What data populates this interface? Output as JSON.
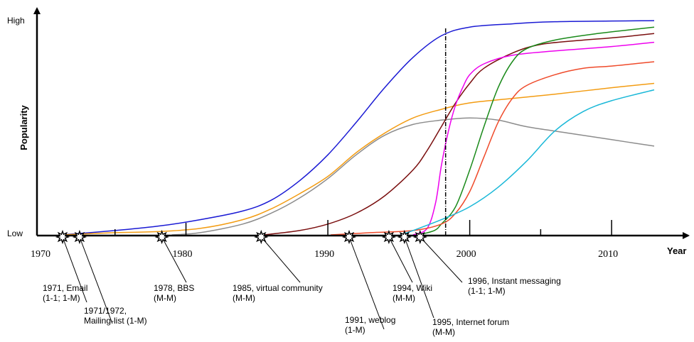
{
  "chart_data": {
    "type": "line",
    "xlabel": "Year",
    "ylabel": "Popularity",
    "y_ticks": [
      "Low",
      "High"
    ],
    "x_ticks": [
      "1970",
      "1980",
      "1990",
      "2000",
      "2010"
    ],
    "xlim": [
      1970,
      2013
    ],
    "ylim": [
      0,
      1
    ],
    "grid": false,
    "legend": "none",
    "series": [
      {
        "color": "#1a1ad4",
        "points": [
          [
            1971.2,
            0.0
          ],
          [
            1975,
            0.02
          ],
          [
            1978,
            0.04
          ],
          [
            1981,
            0.07
          ],
          [
            1984,
            0.11
          ],
          [
            1986,
            0.16
          ],
          [
            1988,
            0.25
          ],
          [
            1990,
            0.37
          ],
          [
            1992,
            0.52
          ],
          [
            1994,
            0.68
          ],
          [
            1996,
            0.82
          ],
          [
            1998,
            0.92
          ],
          [
            2000,
            0.96
          ],
          [
            2003,
            0.975
          ],
          [
            2006,
            0.985
          ],
          [
            2013,
            0.99
          ]
        ]
      },
      {
        "color": "#f39c12",
        "points": [
          [
            1971.2,
            0.0
          ],
          [
            1975,
            0.01
          ],
          [
            1978,
            0.015
          ],
          [
            1981,
            0.03
          ],
          [
            1984,
            0.07
          ],
          [
            1986,
            0.12
          ],
          [
            1988,
            0.19
          ],
          [
            1990,
            0.27
          ],
          [
            1992,
            0.38
          ],
          [
            1994,
            0.47
          ],
          [
            1996,
            0.54
          ],
          [
            1998,
            0.58
          ],
          [
            2000,
            0.61
          ],
          [
            2003,
            0.63
          ],
          [
            2006,
            0.65
          ],
          [
            2010,
            0.68
          ],
          [
            2013,
            0.7
          ]
        ]
      },
      {
        "color": "#8c8c8c",
        "points": [
          [
            1979,
            0.0
          ],
          [
            1981,
            0.01
          ],
          [
            1984,
            0.05
          ],
          [
            1986,
            0.1
          ],
          [
            1988,
            0.17
          ],
          [
            1990,
            0.26
          ],
          [
            1992,
            0.37
          ],
          [
            1994,
            0.46
          ],
          [
            1996,
            0.51
          ],
          [
            1998,
            0.53
          ],
          [
            2000,
            0.54
          ],
          [
            2002,
            0.53
          ],
          [
            2004,
            0.5
          ],
          [
            2007,
            0.47
          ],
          [
            2010,
            0.44
          ],
          [
            2013,
            0.41
          ]
        ]
      },
      {
        "color": "#7a0e0e",
        "points": [
          [
            1985.5,
            0.0
          ],
          [
            1988,
            0.02
          ],
          [
            1990,
            0.05
          ],
          [
            1992,
            0.1
          ],
          [
            1994,
            0.18
          ],
          [
            1996,
            0.3
          ],
          [
            1997,
            0.39
          ],
          [
            1998,
            0.5
          ],
          [
            1999,
            0.61
          ],
          [
            2000,
            0.7
          ],
          [
            2001,
            0.77
          ],
          [
            2003,
            0.84
          ],
          [
            2005,
            0.88
          ],
          [
            2008,
            0.9
          ],
          [
            2010,
            0.91
          ],
          [
            2013,
            0.93
          ]
        ]
      },
      {
        "color": "#ee00ee",
        "points": [
          [
            1996,
            0.0
          ],
          [
            1997,
            0.03
          ],
          [
            1997.6,
            0.15
          ],
          [
            1998,
            0.32
          ],
          [
            1998.5,
            0.48
          ],
          [
            1999,
            0.6
          ],
          [
            1999.5,
            0.68
          ],
          [
            2000,
            0.74
          ],
          [
            2001,
            0.79
          ],
          [
            2003,
            0.83
          ],
          [
            2006,
            0.85
          ],
          [
            2010,
            0.87
          ],
          [
            2013,
            0.89
          ]
        ]
      },
      {
        "color": "#1a8a1a",
        "points": [
          [
            1996.4,
            0.0
          ],
          [
            1997.5,
            0.02
          ],
          [
            1998,
            0.05
          ],
          [
            1999,
            0.13
          ],
          [
            2000,
            0.3
          ],
          [
            2001,
            0.5
          ],
          [
            2002,
            0.68
          ],
          [
            2003,
            0.8
          ],
          [
            2004,
            0.86
          ],
          [
            2006,
            0.9
          ],
          [
            2009,
            0.93
          ],
          [
            2013,
            0.96
          ]
        ]
      },
      {
        "color": "#ef4a2a",
        "points": [
          [
            1990.2,
            0.0
          ],
          [
            1993,
            0.01
          ],
          [
            1996,
            0.02
          ],
          [
            1998,
            0.05
          ],
          [
            1999,
            0.1
          ],
          [
            2000,
            0.2
          ],
          [
            2001,
            0.36
          ],
          [
            2002,
            0.52
          ],
          [
            2003,
            0.63
          ],
          [
            2004,
            0.69
          ],
          [
            2006,
            0.74
          ],
          [
            2008,
            0.77
          ],
          [
            2010,
            0.78
          ],
          [
            2013,
            0.8
          ]
        ]
      },
      {
        "color": "#1ab8d8",
        "points": [
          [
            1995.1,
            0.0
          ],
          [
            1996,
            0.02
          ],
          [
            1998,
            0.07
          ],
          [
            2000,
            0.13
          ],
          [
            2002,
            0.22
          ],
          [
            2004,
            0.34
          ],
          [
            2006,
            0.48
          ],
          [
            2008,
            0.57
          ],
          [
            2010,
            0.62
          ],
          [
            2013,
            0.67
          ]
        ]
      }
    ],
    "reference_line": {
      "x": 1998.3,
      "style": "dash-dot"
    },
    "events": [
      {
        "x": 1971.0,
        "label1": "1971, Email",
        "label2": "(1-1; 1-M)"
      },
      {
        "x": 1972.2,
        "label1": "1971/1972,",
        "label2": "Mailing-list (1-M)"
      },
      {
        "x": 1978.0,
        "label1": "1978, BBS",
        "label2": "(M-M)"
      },
      {
        "x": 1985.0,
        "label1": "1985, virtual community",
        "label2": "(M-M)"
      },
      {
        "x": 1991.2,
        "label1": "1991, weblog",
        "label2": "(1-M)"
      },
      {
        "x": 1994.0,
        "label1": "1994, Wiki",
        "label2": "(M-M)"
      },
      {
        "x": 1995.1,
        "label1": "1995, Internet forum",
        "label2": "(M-M)"
      },
      {
        "x": 1996.2,
        "label1": "1996, Instant messaging",
        "label2": "(1-1; 1-M)"
      }
    ]
  }
}
